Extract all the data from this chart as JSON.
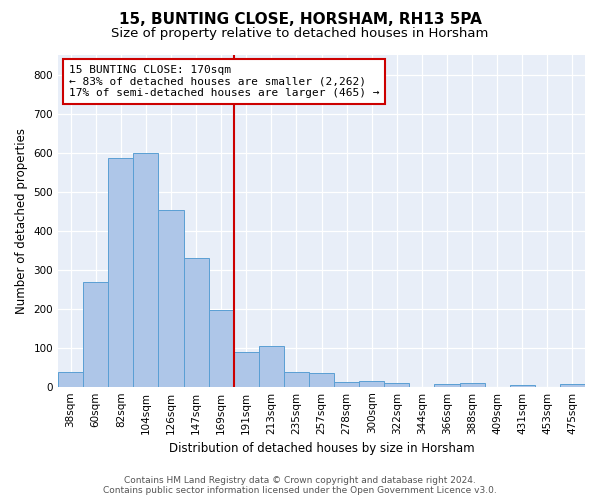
{
  "title": "15, BUNTING CLOSE, HORSHAM, RH13 5PA",
  "subtitle": "Size of property relative to detached houses in Horsham",
  "xlabel": "Distribution of detached houses by size in Horsham",
  "ylabel": "Number of detached properties",
  "categories": [
    "38sqm",
    "60sqm",
    "82sqm",
    "104sqm",
    "126sqm",
    "147sqm",
    "169sqm",
    "191sqm",
    "213sqm",
    "235sqm",
    "257sqm",
    "278sqm",
    "300sqm",
    "322sqm",
    "344sqm",
    "366sqm",
    "388sqm",
    "409sqm",
    "431sqm",
    "453sqm",
    "475sqm"
  ],
  "values": [
    38,
    267,
    585,
    600,
    453,
    330,
    197,
    90,
    103,
    37,
    35,
    12,
    15,
    10,
    0,
    8,
    10,
    0,
    5,
    0,
    8
  ],
  "bar_color": "#aec6e8",
  "bar_edge_color": "#5a9fd4",
  "vline_x_index": 6,
  "vline_color": "#cc0000",
  "annotation_line1": "15 BUNTING CLOSE: 170sqm",
  "annotation_line2": "← 83% of detached houses are smaller (2,262)",
  "annotation_line3": "17% of semi-detached houses are larger (465) →",
  "annotation_box_edgecolor": "#cc0000",
  "ylim": [
    0,
    850
  ],
  "yticks": [
    0,
    100,
    200,
    300,
    400,
    500,
    600,
    700,
    800
  ],
  "footer_line1": "Contains HM Land Registry data © Crown copyright and database right 2024.",
  "footer_line2": "Contains public sector information licensed under the Open Government Licence v3.0.",
  "bg_color": "#e8eef8",
  "title_fontsize": 11,
  "subtitle_fontsize": 9.5,
  "axis_label_fontsize": 8.5,
  "tick_fontsize": 7.5,
  "annotation_fontsize": 8,
  "footer_fontsize": 6.5
}
